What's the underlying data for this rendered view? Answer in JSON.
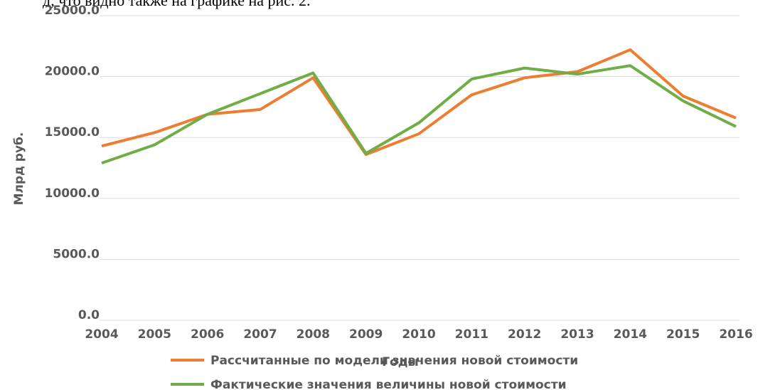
{
  "header_text": "д, что видно также на графике на рис. 2.",
  "chart_data": {
    "type": "line",
    "x_label": "Годы",
    "y_label": "Млрд руб.",
    "categories": [
      "2004",
      "2005",
      "2006",
      "2007",
      "2008",
      "2009",
      "2010",
      "2011",
      "2012",
      "2013",
      "2014",
      "2015",
      "2016"
    ],
    "series": [
      {
        "name": "Рассчитанные по модели значения новой стоимости",
        "color": "#ed7d31",
        "values": [
          14300,
          15400,
          16900,
          17300,
          19900,
          13600,
          15300,
          18500,
          19900,
          20400,
          22200,
          18400,
          16600
        ]
      },
      {
        "name": "Фактические значения величины новой стоимости",
        "color": "#70ad47",
        "values": [
          12900,
          14400,
          16900,
          18600,
          20300,
          13700,
          16200,
          19800,
          20700,
          20200,
          20900,
          18000,
          15900
        ]
      }
    ],
    "ylim": [
      0,
      25000
    ],
    "yticks": [
      {
        "value": 0,
        "label": "0.0"
      },
      {
        "value": 5000,
        "label": "5000.0"
      },
      {
        "value": 10000,
        "label": "10000.0"
      },
      {
        "value": 15000,
        "label": "15000.0"
      },
      {
        "value": 20000,
        "label": "20000.0"
      },
      {
        "value": 25000,
        "label": "25000.0"
      }
    ],
    "grid": true,
    "legend": "bottom"
  }
}
